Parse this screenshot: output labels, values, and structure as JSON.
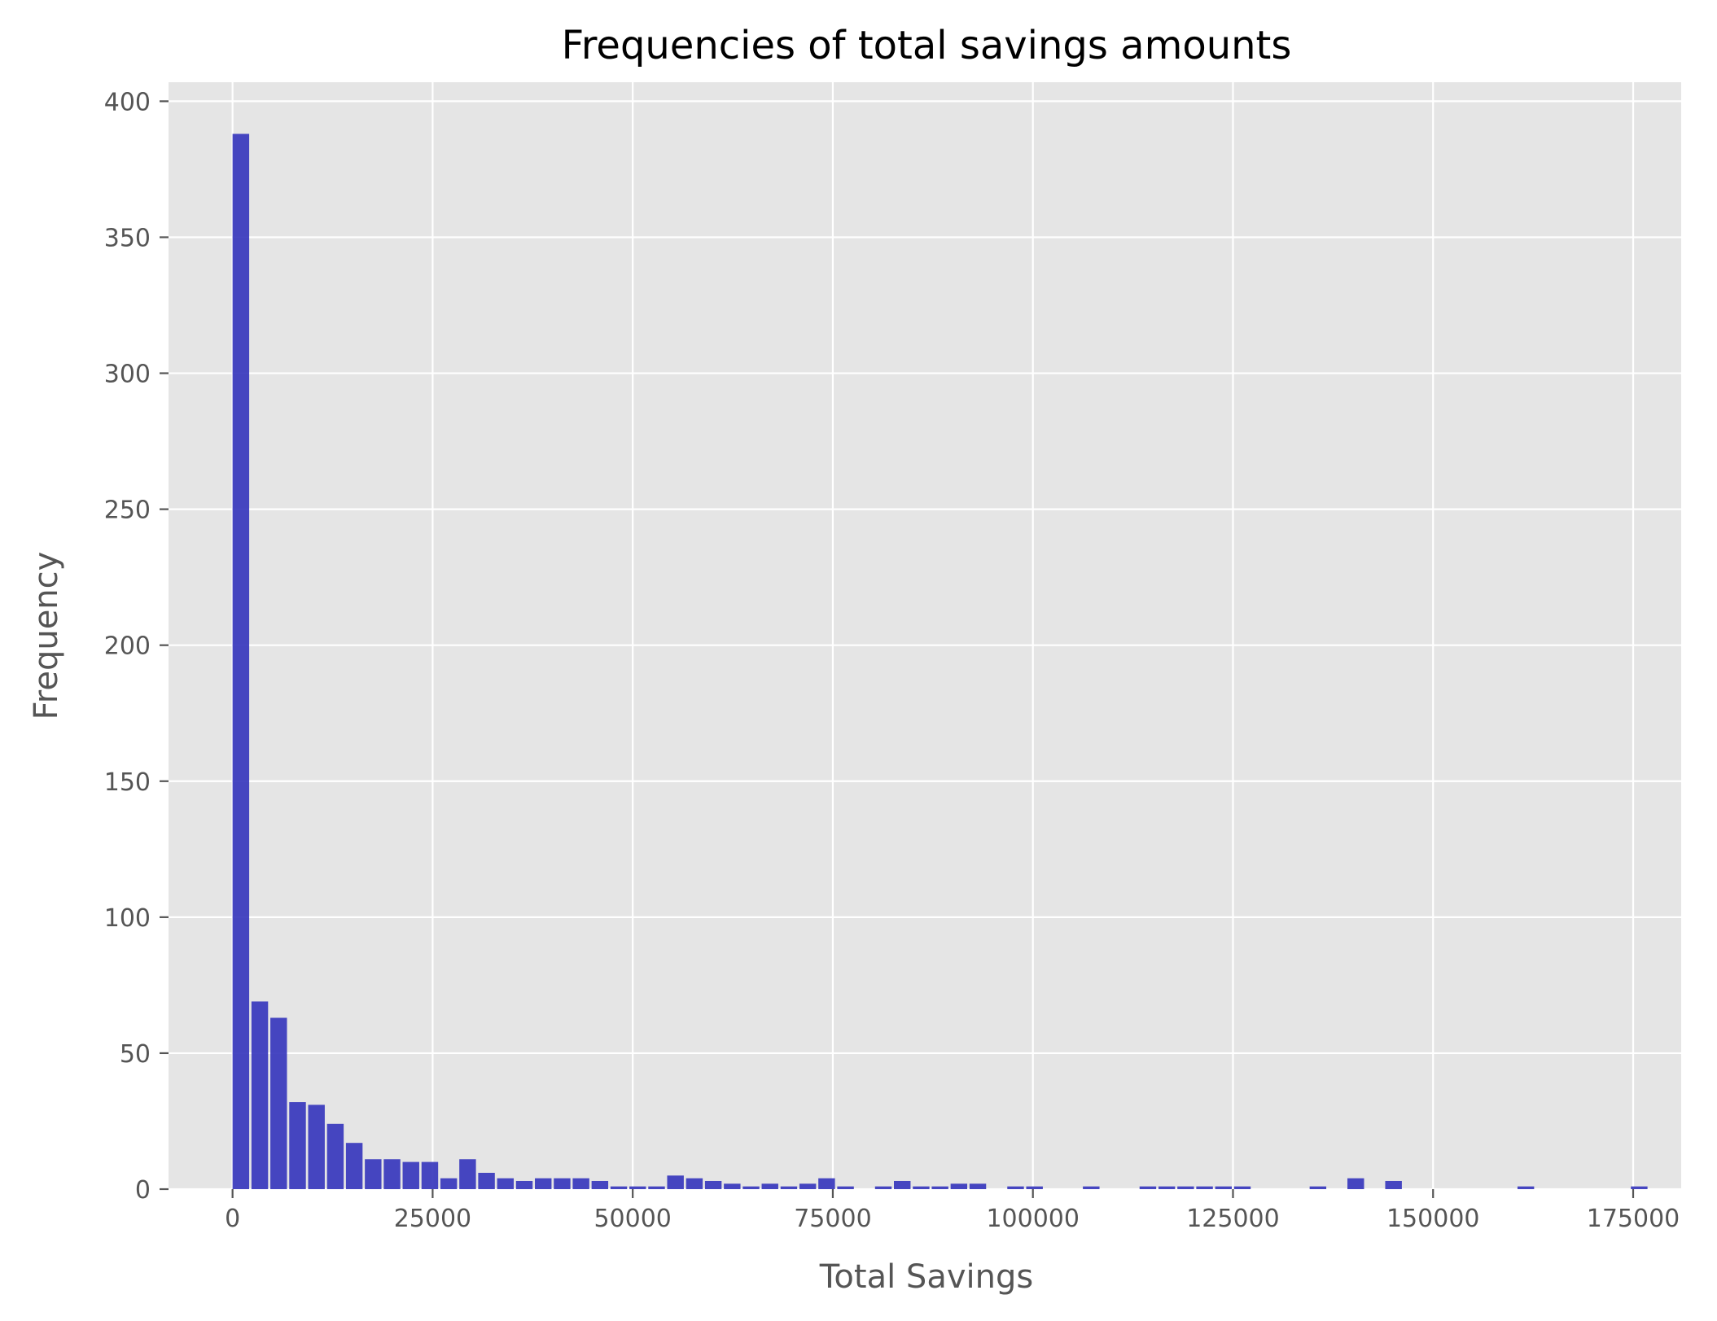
{
  "chart_data": {
    "type": "bar",
    "title": "Frequencies of total savings amounts",
    "xlabel": "Total Savings",
    "ylabel": "Frequency",
    "xlim": [
      -8000,
      181000
    ],
    "ylim": [
      0,
      407
    ],
    "x_ticks": [
      0,
      25000,
      50000,
      75000,
      100000,
      125000,
      150000,
      175000
    ],
    "x_tick_labels": [
      "0",
      "25000",
      "50000",
      "75000",
      "100000",
      "125000",
      "150000",
      "175000"
    ],
    "y_ticks": [
      0,
      50,
      100,
      150,
      200,
      250,
      300,
      350,
      400
    ],
    "y_tick_labels": [
      "0",
      "50",
      "100",
      "150",
      "200",
      "250",
      "300",
      "350",
      "400"
    ],
    "grid": true,
    "bin_start": 0,
    "bin_width": 2361,
    "bar_color": "#3333bb",
    "background_color": "#e5e5e5",
    "grid_color": "#ffffff",
    "values": [
      388,
      69,
      63,
      32,
      31,
      24,
      17,
      11,
      11,
      10,
      10,
      4,
      11,
      6,
      4,
      3,
      4,
      4,
      4,
      3,
      1,
      1,
      1,
      5,
      4,
      3,
      2,
      1,
      2,
      1,
      2,
      4,
      1,
      0,
      1,
      3,
      1,
      1,
      2,
      2,
      0,
      1,
      1,
      0,
      0,
      1,
      0,
      0,
      1,
      1,
      1,
      1,
      1,
      1,
      0,
      0,
      0,
      1,
      0,
      4,
      0,
      3,
      0,
      0,
      0,
      0,
      0,
      0,
      1,
      0,
      0,
      0,
      0,
      0,
      1,
      0,
      0,
      0,
      0,
      0,
      0,
      0,
      0,
      0,
      0,
      0
    ]
  }
}
